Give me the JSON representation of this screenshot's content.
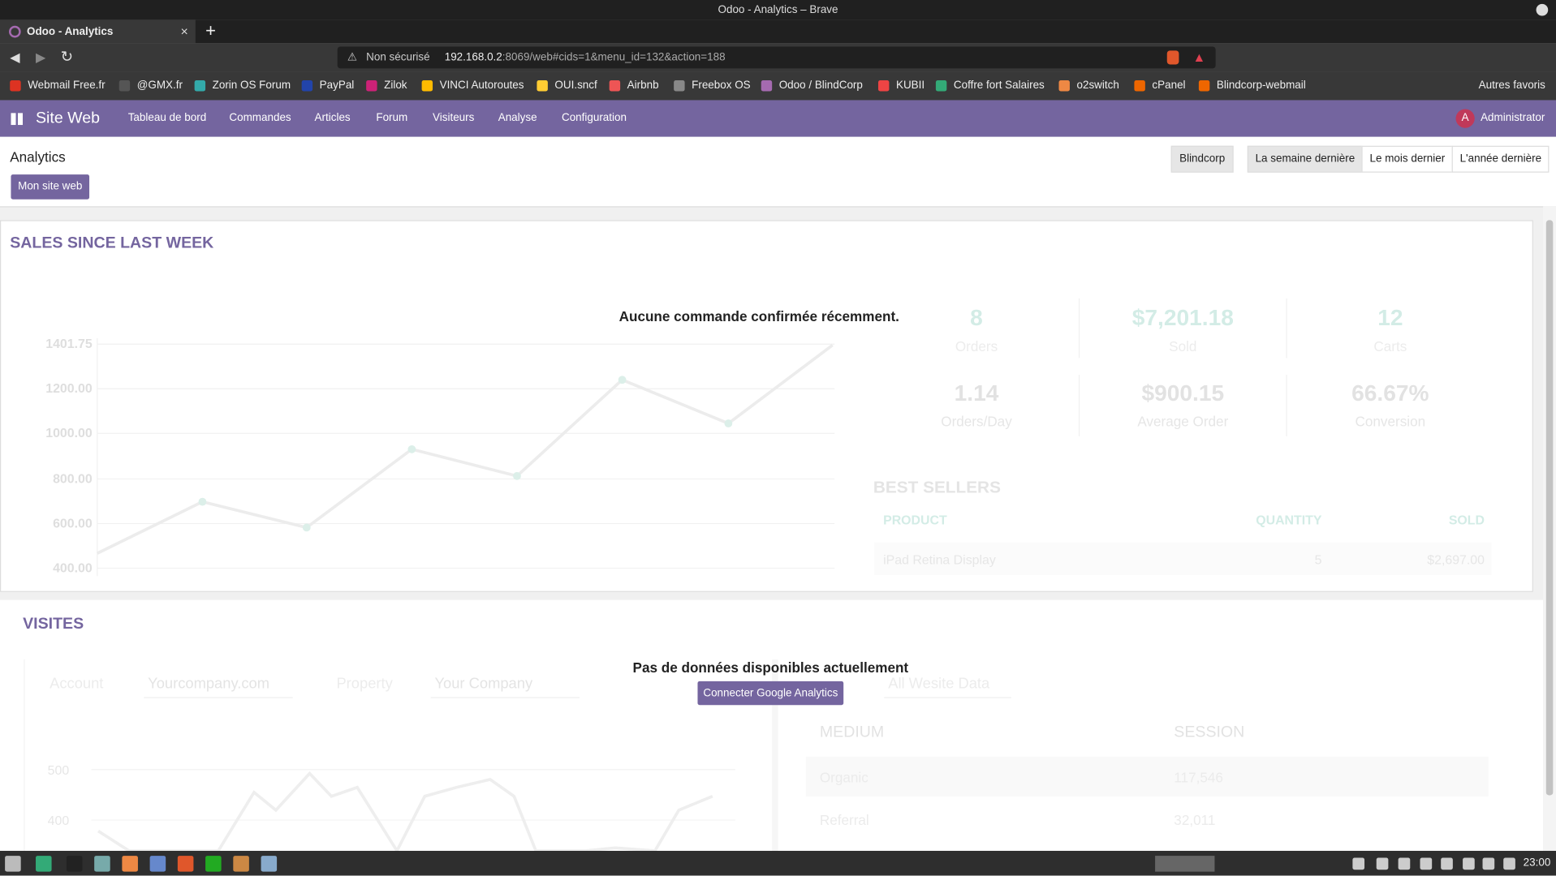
{
  "browser": {
    "window_title": "Odoo - Analytics – Brave",
    "tab_title": "Odoo - Analytics",
    "url_warning": "Non sécurisé",
    "url_host": "192.168.0.2",
    "url_rest": ":8069/web#cids=1&menu_id=132&action=188",
    "bookmarks": [
      "Webmail Free.fr",
      "@GMX.fr",
      "Zorin OS Forum",
      "PayPal",
      "Zilok",
      "VINCI Autoroutes",
      "OUI.sncf",
      "Airbnb",
      "Freebox OS",
      "Odoo / BlindCorp",
      "KUBII",
      "Coffre fort Salaires",
      "o2switch",
      "cPanel",
      "Blindcorp-webmail"
    ],
    "other_bookmarks": "Autres favoris"
  },
  "app": {
    "brand": "Site Web",
    "menu": [
      "Tableau de bord",
      "Commandes",
      "Articles",
      "Forum",
      "Visiteurs",
      "Analyse",
      "Configuration"
    ],
    "avatar": "A",
    "user": "Administrator"
  },
  "control_panel": {
    "title": "Analytics",
    "site_button": "Mon site web",
    "company": "Blindcorp",
    "periods": [
      "La semaine dernière",
      "Le mois dernier",
      "L'année dernière"
    ]
  },
  "sales": {
    "title": "SALES SINCE LAST WEEK",
    "message": "Aucune commande confirmée récemment.",
    "yticks": [
      "1401.75",
      "1200.00",
      "1000.00",
      "800.00",
      "600.00",
      "400.00"
    ],
    "stats": [
      {
        "value": "8",
        "label": "Orders"
      },
      {
        "value": "$7,201.18",
        "label": "Sold"
      },
      {
        "value": "12",
        "label": "Carts"
      },
      {
        "value": "1.14",
        "label": "Orders/Day"
      },
      {
        "value": "$900.15",
        "label": "Average Order"
      },
      {
        "value": "66.67%",
        "label": "Conversion"
      }
    ],
    "best_sellers": {
      "title": "BEST SELLERS",
      "headers": [
        "PRODUCT",
        "QUANTITY",
        "SOLD"
      ],
      "rows": [
        [
          "iPad Retina Display",
          "5",
          "$2,697.00"
        ]
      ]
    }
  },
  "visits": {
    "title": "VISITES",
    "message": "Pas de données disponibles actuellement",
    "button": "Connecter Google Analytics",
    "filters": [
      "Account",
      "Yourcompany.com",
      "Property",
      "Your Company",
      "All Wesite Data"
    ],
    "yticks": [
      "500",
      "400"
    ],
    "table": {
      "headers": [
        "MEDIUM",
        "SESSION"
      ],
      "rows": [
        [
          "Organic",
          "117,546"
        ],
        [
          "Referral",
          "32,011"
        ]
      ]
    }
  },
  "taskbar": {
    "clock": "23:00"
  }
}
